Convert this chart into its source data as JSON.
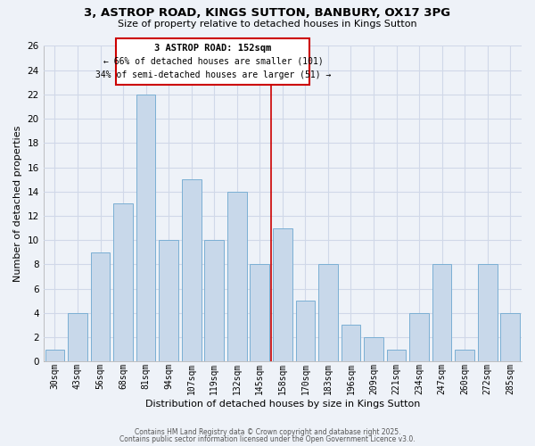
{
  "title": "3, ASTROP ROAD, KINGS SUTTON, BANBURY, OX17 3PG",
  "subtitle": "Size of property relative to detached houses in Kings Sutton",
  "xlabel": "Distribution of detached houses by size in Kings Sutton",
  "ylabel": "Number of detached properties",
  "bar_labels": [
    "30sqm",
    "43sqm",
    "56sqm",
    "68sqm",
    "81sqm",
    "94sqm",
    "107sqm",
    "119sqm",
    "132sqm",
    "145sqm",
    "158sqm",
    "170sqm",
    "183sqm",
    "196sqm",
    "209sqm",
    "221sqm",
    "234sqm",
    "247sqm",
    "260sqm",
    "272sqm",
    "285sqm"
  ],
  "bar_values": [
    1,
    4,
    9,
    13,
    22,
    10,
    15,
    10,
    14,
    8,
    11,
    5,
    8,
    3,
    2,
    1,
    4,
    8,
    1,
    8,
    4
  ],
  "bar_color": "#c8d8ea",
  "bar_edge_color": "#7bafd4",
  "background_color": "#eef2f8",
  "grid_color": "#d0d8e8",
  "ylim": [
    0,
    26
  ],
  "yticks": [
    0,
    2,
    4,
    6,
    8,
    10,
    12,
    14,
    16,
    18,
    20,
    22,
    24,
    26
  ],
  "annotation_title": "3 ASTROP ROAD: 152sqm",
  "annotation_line1": "← 66% of detached houses are smaller (101)",
  "annotation_line2": "34% of semi-detached houses are larger (51) →",
  "annotation_box_color": "#ffffff",
  "annotation_box_edge": "#cc0000",
  "vline_color": "#cc0000",
  "vline_pos": 9.5,
  "footer1": "Contains HM Land Registry data © Crown copyright and database right 2025.",
  "footer2": "Contains public sector information licensed under the Open Government Licence v3.0."
}
